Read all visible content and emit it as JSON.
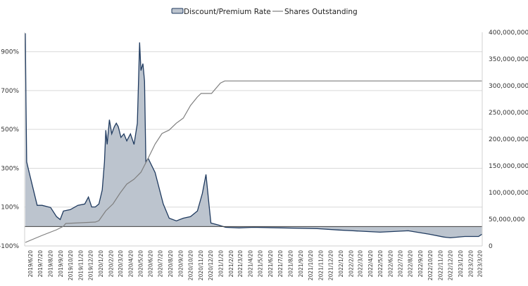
{
  "chart_data": {
    "type": "area",
    "title": "",
    "legend": {
      "placement": "top",
      "entries": [
        "Discount/Premium Rate",
        "Shares Outstanding"
      ]
    },
    "colors": {
      "area_fill": "#bcc4ce",
      "area_line": "#1f3a5f",
      "shares_line": "#7f7f7f",
      "grid": "#d9d9d9",
      "zero_line": "#404040"
    },
    "grid": true,
    "y_left": {
      "range": [
        -100,
        1000
      ],
      "ticks": [
        -100,
        100,
        300,
        500,
        700,
        900
      ],
      "tick_labels": [
        "-100%",
        "100%",
        "300%",
        "500%",
        "700%",
        "900%"
      ]
    },
    "y_right": {
      "range": [
        0,
        400000000
      ],
      "ticks": [
        0,
        50000000,
        100000000,
        150000000,
        200000000,
        250000000,
        300000000,
        350000000,
        400000000
      ],
      "tick_labels": [
        "0",
        "50,000,000",
        "100,000,000",
        "150,000,000",
        "200,000,000",
        "250,000,000",
        "300,000,000",
        "350,000,000",
        "400,000,000"
      ]
    },
    "x_tick_labels": [
      "2019/6/20",
      "2019/7/20",
      "2019/8/20",
      "2019/9/20",
      "2019/10/20",
      "2019/11/20",
      "2019/12/20",
      "2020/1/20",
      "2020/2/20",
      "2020/3/20",
      "2020/4/20",
      "2020/5/20",
      "2020/6/20",
      "2020/7/20",
      "2020/8/20",
      "2020/9/20",
      "2020/10/20",
      "2020/11/20",
      "2020/12/20",
      "2021/1/20",
      "2021/2/20",
      "2021/3/20",
      "2021/4/20",
      "2021/5/20",
      "2021/6/20",
      "2021/7/20",
      "2021/8/20",
      "2021/9/20",
      "2021/10/20",
      "2021/11/20",
      "2021/12/20",
      "2022/1/20",
      "2022/2/20",
      "2022/3/20",
      "2022/4/20",
      "2022/5/20",
      "2022/6/20",
      "2022/7/20",
      "2022/8/20",
      "2022/9/20",
      "2022/10/20",
      "2022/11/20",
      "2022/12/20",
      "2023/1/20",
      "2023/2/20",
      "2023/3/20"
    ],
    "series": [
      {
        "name": "Discount/Premium Rate",
        "axis": "left",
        "unit": "%",
        "points": [
          [
            "2019/6/5",
            995
          ],
          [
            "2019/6/7",
            640
          ],
          [
            "2019/6/9",
            333
          ],
          [
            "2019/6/14",
            297
          ],
          [
            "2019/7/11",
            109
          ],
          [
            "2019/7/26",
            109
          ],
          [
            "2019/8/21",
            98
          ],
          [
            "2019/9/8",
            51
          ],
          [
            "2019/9/19",
            36
          ],
          [
            "2019/9/29",
            80
          ],
          [
            "2019/10/20",
            87
          ],
          [
            "2019/11/12",
            109
          ],
          [
            "2019/12/3",
            116
          ],
          [
            "2019/12/14",
            152
          ],
          [
            "2019/12/24",
            101
          ],
          [
            "2020/1/4",
            101
          ],
          [
            "2020/1/15",
            116
          ],
          [
            "2020/1/25",
            188
          ],
          [
            "2020/2/1",
            333
          ],
          [
            "2020/2/5",
            496
          ],
          [
            "2020/2/9",
            423
          ],
          [
            "2020/2/16",
            550
          ],
          [
            "2020/2/23",
            477
          ],
          [
            "2020/3/2",
            514
          ],
          [
            "2020/3/8",
            532
          ],
          [
            "2020/3/14",
            514
          ],
          [
            "2020/3/22",
            459
          ],
          [
            "2020/3/31",
            477
          ],
          [
            "2020/4/9",
            441
          ],
          [
            "2020/4/20",
            477
          ],
          [
            "2020/5/1",
            423
          ],
          [
            "2020/5/11",
            532
          ],
          [
            "2020/5/18",
            948
          ],
          [
            "2020/5/22",
            803
          ],
          [
            "2020/5/28",
            839
          ],
          [
            "2020/6/2",
            749
          ],
          [
            "2020/6/6",
            333
          ],
          [
            "2020/6/13",
            351
          ],
          [
            "2020/7/4",
            278
          ],
          [
            "2020/7/29",
            116
          ],
          [
            "2020/8/16",
            43
          ],
          [
            "2020/9/7",
            29
          ],
          [
            "2020/9/28",
            43
          ],
          [
            "2020/10/20",
            51
          ],
          [
            "2020/11/10",
            80
          ],
          [
            "2020/11/25",
            170
          ],
          [
            "2020/12/6",
            268
          ],
          [
            "2020/12/15",
            116
          ],
          [
            "2020/12/21",
            18
          ],
          [
            "2021/1/14",
            7
          ],
          [
            "2021/2/4",
            -4
          ],
          [
            "2021/3/17",
            -7
          ],
          [
            "2021/4/29",
            -4
          ],
          [
            "2021/7/23",
            -7
          ],
          [
            "2021/11/10",
            -11
          ],
          [
            "2022/1/14",
            -18
          ],
          [
            "2022/2/26",
            -22
          ],
          [
            "2022/5/20",
            -29
          ],
          [
            "2022/8/14",
            -22
          ],
          [
            "2022/10/18",
            -40
          ],
          [
            "2022/11/30",
            -54
          ],
          [
            "2022/12/20",
            -58
          ],
          [
            "2023/2/2",
            -51
          ],
          [
            "2023/3/16",
            -51
          ],
          [
            "2023/3/26",
            -40
          ]
        ]
      },
      {
        "name": "Shares Outstanding",
        "axis": "right",
        "points": [
          [
            "2019/6/5",
            6600000
          ],
          [
            "2019/7/26",
            19700000
          ],
          [
            "2019/9/8",
            30300000
          ],
          [
            "2019/9/29",
            36800000
          ],
          [
            "2019/10/6",
            42100000
          ],
          [
            "2020/1/4",
            44700000
          ],
          [
            "2020/1/15",
            47400000
          ],
          [
            "2020/2/5",
            65800000
          ],
          [
            "2020/2/27",
            79000000
          ],
          [
            "2020/3/19",
            98700000
          ],
          [
            "2020/4/9",
            115800000
          ],
          [
            "2020/5/1",
            125000000
          ],
          [
            "2020/5/22",
            138000000
          ],
          [
            "2020/6/13",
            164500000
          ],
          [
            "2020/7/4",
            190800000
          ],
          [
            "2020/7/25",
            210500000
          ],
          [
            "2020/8/16",
            217000000
          ],
          [
            "2020/9/7",
            230000000
          ],
          [
            "2020/9/28",
            239500000
          ],
          [
            "2020/10/20",
            263000000
          ],
          [
            "2020/11/10",
            279000000
          ],
          [
            "2020/11/21",
            285500000
          ],
          [
            "2020/12/23",
            285500000
          ],
          [
            "2021/1/19",
            305000000
          ],
          [
            "2021/2/1",
            309000000
          ],
          [
            "2023/3/26",
            309000000
          ]
        ]
      }
    ]
  }
}
